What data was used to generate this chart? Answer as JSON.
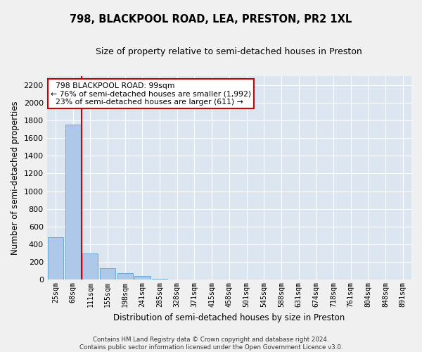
{
  "title": "798, BLACKPOOL ROAD, LEA, PRESTON, PR2 1XL",
  "subtitle": "Size of property relative to semi-detached houses in Preston",
  "xlabel": "Distribution of semi-detached houses by size in Preston",
  "ylabel": "Number of semi-detached properties",
  "footnote": "Contains HM Land Registry data © Crown copyright and database right 2024.\nContains public sector information licensed under the Open Government Licence v3.0.",
  "property_label": "798 BLACKPOOL ROAD: 99sqm",
  "pct_smaller": 76,
  "pct_larger": 23,
  "n_smaller": 1992,
  "n_larger": 611,
  "bin_labels": [
    "25sqm",
    "68sqm",
    "111sqm",
    "155sqm",
    "198sqm",
    "241sqm",
    "285sqm",
    "328sqm",
    "371sqm",
    "415sqm",
    "458sqm",
    "501sqm",
    "545sqm",
    "588sqm",
    "631sqm",
    "674sqm",
    "718sqm",
    "761sqm",
    "804sqm",
    "848sqm",
    "891sqm"
  ],
  "bar_heights": [
    480,
    1750,
    300,
    130,
    75,
    40,
    15,
    0,
    0,
    0,
    0,
    0,
    0,
    0,
    0,
    0,
    0,
    0,
    0,
    0,
    0
  ],
  "bar_color": "#adc8e8",
  "bar_edge_color": "#6aaad4",
  "vline_color": "#cc0000",
  "vline_x": 1.5,
  "annotation_box_color": "#cc0000",
  "ylim": [
    0,
    2300
  ],
  "yticks": [
    0,
    200,
    400,
    600,
    800,
    1000,
    1200,
    1400,
    1600,
    1800,
    2000,
    2200
  ],
  "bg_color": "#dce6f1",
  "grid_color": "#ffffff",
  "fig_bg_color": "#f0f0f0"
}
